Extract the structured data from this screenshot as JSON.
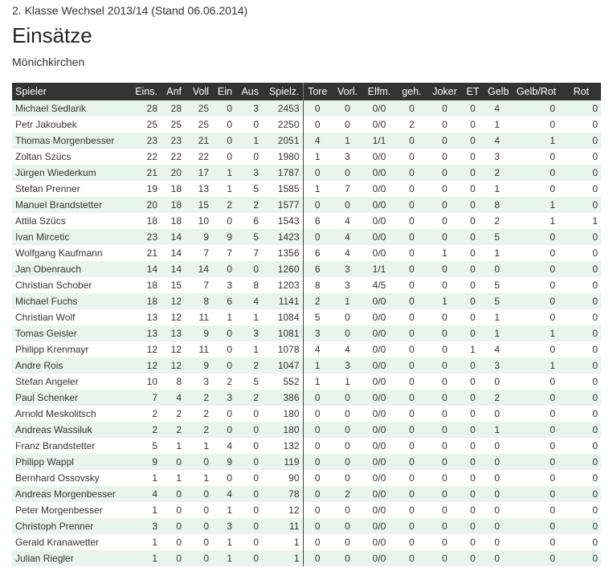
{
  "header": {
    "subtitle": "2. Klasse Wechsel 2013/14 (Stand 06.06.2014)",
    "title": "Einsätze",
    "club": "Mönichkirchen"
  },
  "table": {
    "columns": [
      "Spieler",
      "Eins.",
      "Anf",
      "Voll",
      "Ein",
      "Aus",
      "Spielz.",
      "Tore",
      "Vorl.",
      "Elfm.",
      "geh.",
      "Joker",
      "ET",
      "Gelb",
      "Gelb/Rot",
      "Rot"
    ],
    "rows": [
      [
        "Michael Sedlarik",
        "28",
        "28",
        "25",
        "0",
        "3",
        "2453",
        "0",
        "0",
        "0/0",
        "0",
        "0",
        "0",
        "4",
        "0",
        "0"
      ],
      [
        "Petr Jakoubek",
        "25",
        "25",
        "25",
        "0",
        "0",
        "2250",
        "0",
        "0",
        "0/0",
        "2",
        "0",
        "0",
        "1",
        "0",
        "0"
      ],
      [
        "Thomas Morgenbesser",
        "23",
        "23",
        "21",
        "0",
        "1",
        "2051",
        "4",
        "1",
        "1/1",
        "0",
        "0",
        "0",
        "4",
        "1",
        "0"
      ],
      [
        "Zoltan Szücs",
        "22",
        "22",
        "22",
        "0",
        "0",
        "1980",
        "1",
        "3",
        "0/0",
        "0",
        "0",
        "0",
        "3",
        "0",
        "0"
      ],
      [
        "Jürgen Wiederkum",
        "21",
        "20",
        "17",
        "1",
        "3",
        "1787",
        "0",
        "0",
        "0/0",
        "0",
        "0",
        "0",
        "2",
        "0",
        "0"
      ],
      [
        "Stefan Prenner",
        "19",
        "18",
        "13",
        "1",
        "5",
        "1585",
        "1",
        "7",
        "0/0",
        "0",
        "0",
        "0",
        "1",
        "0",
        "0"
      ],
      [
        "Manuel Brandstetter",
        "20",
        "18",
        "15",
        "2",
        "2",
        "1577",
        "0",
        "0",
        "0/0",
        "0",
        "0",
        "0",
        "8",
        "1",
        "0"
      ],
      [
        "Attila Szücs",
        "18",
        "18",
        "10",
        "0",
        "6",
        "1543",
        "6",
        "4",
        "0/0",
        "0",
        "0",
        "0",
        "2",
        "1",
        "1"
      ],
      [
        "Ivan Mircetic",
        "23",
        "14",
        "9",
        "9",
        "5",
        "1423",
        "0",
        "4",
        "0/0",
        "0",
        "0",
        "0",
        "5",
        "0",
        "0"
      ],
      [
        "Wolfgang Kaufmann",
        "21",
        "14",
        "7",
        "7",
        "7",
        "1356",
        "6",
        "4",
        "0/0",
        "0",
        "1",
        "0",
        "1",
        "0",
        "0"
      ],
      [
        "Jan Obenrauch",
        "14",
        "14",
        "14",
        "0",
        "0",
        "1260",
        "6",
        "3",
        "1/1",
        "0",
        "0",
        "0",
        "0",
        "0",
        "0"
      ],
      [
        "Christian Schober",
        "18",
        "15",
        "7",
        "3",
        "8",
        "1203",
        "8",
        "3",
        "4/5",
        "0",
        "0",
        "0",
        "5",
        "0",
        "0"
      ],
      [
        "Michael Fuchs",
        "18",
        "12",
        "8",
        "6",
        "4",
        "1141",
        "2",
        "1",
        "0/0",
        "0",
        "1",
        "0",
        "5",
        "0",
        "0"
      ],
      [
        "Christian Wolf",
        "13",
        "12",
        "11",
        "1",
        "1",
        "1084",
        "5",
        "0",
        "0/0",
        "0",
        "0",
        "0",
        "1",
        "0",
        "0"
      ],
      [
        "Tomas Geisler",
        "13",
        "13",
        "9",
        "0",
        "3",
        "1081",
        "3",
        "0",
        "0/0",
        "0",
        "0",
        "0",
        "1",
        "1",
        "0"
      ],
      [
        "Philipp Krenmayr",
        "12",
        "12",
        "11",
        "0",
        "1",
        "1078",
        "4",
        "4",
        "0/0",
        "0",
        "0",
        "1",
        "4",
        "0",
        "0"
      ],
      [
        "Andre Rois",
        "12",
        "12",
        "9",
        "0",
        "2",
        "1047",
        "1",
        "3",
        "0/0",
        "0",
        "0",
        "0",
        "3",
        "1",
        "0"
      ],
      [
        "Stefan Angeler",
        "10",
        "8",
        "3",
        "2",
        "5",
        "552",
        "1",
        "1",
        "0/0",
        "0",
        "0",
        "0",
        "0",
        "0",
        "0"
      ],
      [
        "Paul Schenker",
        "7",
        "4",
        "2",
        "3",
        "2",
        "386",
        "0",
        "0",
        "0/0",
        "0",
        "0",
        "0",
        "2",
        "0",
        "0"
      ],
      [
        "Arnold Meskolitsch",
        "2",
        "2",
        "2",
        "0",
        "0",
        "180",
        "0",
        "0",
        "0/0",
        "0",
        "0",
        "0",
        "0",
        "0",
        "0"
      ],
      [
        "Andreas Wassiluk",
        "2",
        "2",
        "2",
        "0",
        "0",
        "180",
        "0",
        "0",
        "0/0",
        "0",
        "0",
        "0",
        "1",
        "0",
        "0"
      ],
      [
        "Franz Brandstetter",
        "5",
        "1",
        "1",
        "4",
        "0",
        "132",
        "0",
        "0",
        "0/0",
        "0",
        "0",
        "0",
        "0",
        "0",
        "0"
      ],
      [
        "Philipp Wappl",
        "9",
        "0",
        "0",
        "9",
        "0",
        "119",
        "0",
        "0",
        "0/0",
        "0",
        "0",
        "0",
        "0",
        "0",
        "0"
      ],
      [
        "Bernhard Ossovsky",
        "1",
        "1",
        "1",
        "0",
        "0",
        "90",
        "0",
        "0",
        "0/0",
        "0",
        "0",
        "0",
        "0",
        "0",
        "0"
      ],
      [
        "Andreas Morgenbesser",
        "4",
        "0",
        "0",
        "4",
        "0",
        "78",
        "0",
        "2",
        "0/0",
        "0",
        "0",
        "0",
        "0",
        "0",
        "0"
      ],
      [
        "Peter Morgenbesser",
        "1",
        "0",
        "0",
        "1",
        "0",
        "12",
        "0",
        "0",
        "0/0",
        "0",
        "0",
        "0",
        "0",
        "0",
        "0"
      ],
      [
        "Christoph Prenner",
        "3",
        "0",
        "0",
        "3",
        "0",
        "11",
        "0",
        "0",
        "0/0",
        "0",
        "0",
        "0",
        "0",
        "0",
        "0"
      ],
      [
        "Gerald Kranawetter",
        "1",
        "0",
        "0",
        "1",
        "0",
        "1",
        "0",
        "0",
        "0/0",
        "0",
        "0",
        "0",
        "0",
        "0",
        "0"
      ],
      [
        "Julian Riegler",
        "1",
        "0",
        "0",
        "1",
        "0",
        "1",
        "0",
        "0",
        "0/0",
        "0",
        "0",
        "0",
        "0",
        "0",
        "0"
      ]
    ]
  }
}
